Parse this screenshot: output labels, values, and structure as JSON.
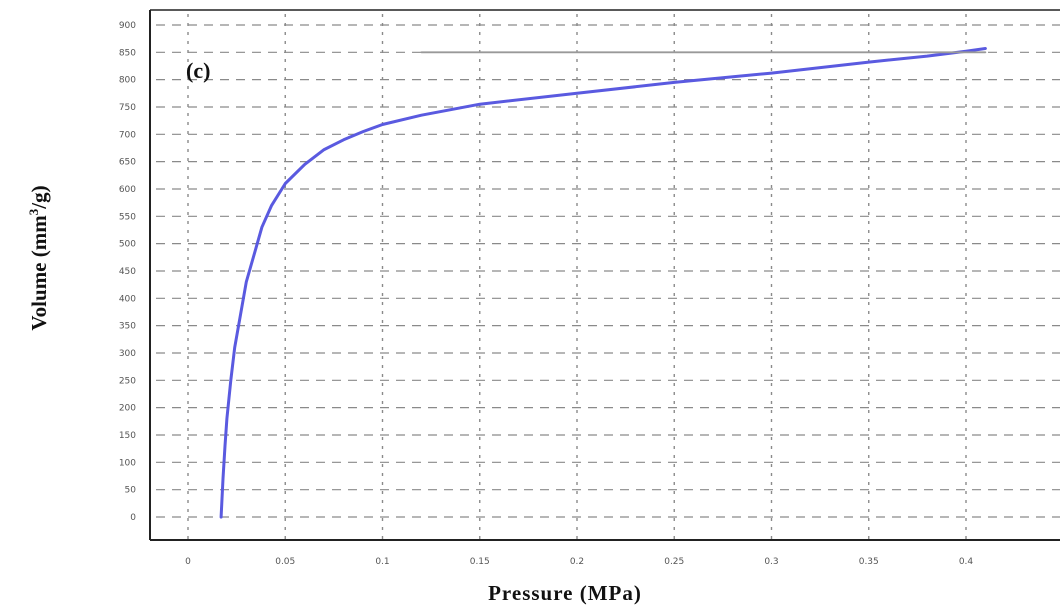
{
  "chart_data": {
    "type": "line",
    "panel_label": "(c)",
    "xlabel": "Pressure (MPa)",
    "ylabel_main": "Volume (mm",
    "ylabel_sup": "3",
    "ylabel_tail": "/g)",
    "xlim": [
      0,
      0.42
    ],
    "ylim": [
      0,
      900
    ],
    "xticks": [
      0,
      0.05,
      0.1,
      0.15,
      0.2,
      0.25,
      0.3,
      0.35,
      0.4
    ],
    "xtick_labels": [
      "0",
      "0.05",
      "0.1",
      "0.15",
      "0.2",
      "0.25",
      "0.3",
      "0.35",
      "0.4"
    ],
    "yticks": [
      0,
      50,
      100,
      150,
      200,
      250,
      300,
      350,
      400,
      450,
      500,
      550,
      600,
      650,
      700,
      750,
      800,
      850,
      900
    ],
    "ytick_labels": [
      "0",
      "50",
      "100",
      "150",
      "200",
      "250",
      "300",
      "350",
      "400",
      "450",
      "500",
      "550",
      "600",
      "650",
      "700",
      "750",
      "800",
      "850",
      "900"
    ],
    "grid": true,
    "series": [
      {
        "color": "#5a5ae0",
        "x": [
          0.017,
          0.018,
          0.019,
          0.02,
          0.022,
          0.024,
          0.027,
          0.03,
          0.034,
          0.038,
          0.043,
          0.05,
          0.06,
          0.07,
          0.08,
          0.09,
          0.1,
          0.12,
          0.15,
          0.2,
          0.25,
          0.3,
          0.35,
          0.38,
          0.4,
          0.41
        ],
        "y": [
          0,
          70,
          130,
          180,
          250,
          310,
          370,
          430,
          480,
          530,
          570,
          610,
          645,
          672,
          690,
          705,
          718,
          735,
          755,
          775,
          795,
          812,
          832,
          843,
          852,
          857
        ]
      },
      {
        "color": "#999999",
        "x": [
          0.12,
          0.41
        ],
        "y": [
          850,
          850
        ]
      }
    ]
  }
}
